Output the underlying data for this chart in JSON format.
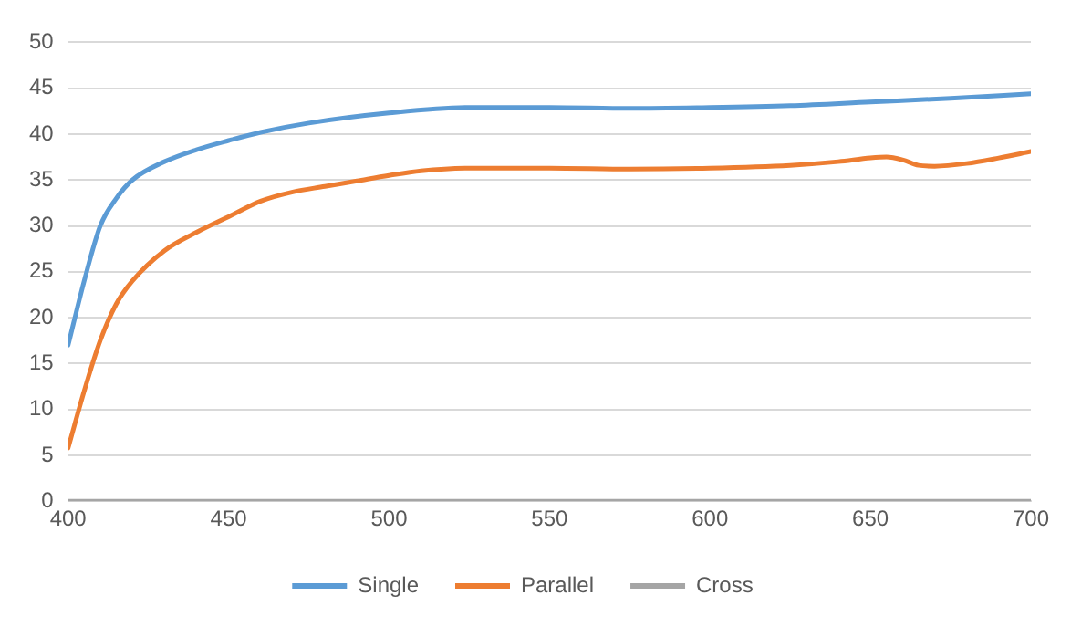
{
  "chart_data": {
    "type": "line",
    "xlim": [
      400,
      700
    ],
    "xticks": [
      400,
      450,
      500,
      550,
      600,
      650,
      700
    ],
    "ylim": [
      0,
      50
    ],
    "yticks": [
      0,
      5,
      10,
      15,
      20,
      25,
      30,
      35,
      40,
      45,
      50
    ],
    "grid": "y",
    "legend": "bottom",
    "marker": "none",
    "line_style": "solid",
    "series": [
      {
        "name": "Single",
        "color": "#5b9bd5",
        "x": [
          400,
          405,
          410,
          415,
          420,
          430,
          440,
          450,
          460,
          475,
          500,
          525,
          550,
          575,
          600,
          625,
          650,
          675,
          700
        ],
        "values": [
          17,
          24,
          30,
          33,
          35,
          37,
          38.3,
          39.3,
          40.2,
          41.2,
          42.3,
          42.9,
          42.9,
          42.8,
          42.9,
          43.1,
          43.5,
          43.9,
          44.4
        ]
      },
      {
        "name": "Parallel",
        "color": "#ed7d31",
        "x": [
          400,
          405,
          410,
          415,
          420,
          430,
          440,
          450,
          460,
          470,
          480,
          490,
          500,
          510,
          525,
          550,
          575,
          600,
          625,
          640,
          650,
          655,
          660,
          665,
          670,
          680,
          690,
          700
        ],
        "values": [
          5.8,
          12,
          17.5,
          21.5,
          24,
          27.3,
          29.3,
          31,
          32.7,
          33.7,
          34.3,
          34.9,
          35.5,
          36,
          36.3,
          36.3,
          36.2,
          36.3,
          36.6,
          37,
          37.4,
          37.5,
          37.2,
          36.6,
          36.5,
          36.8,
          37.4,
          38.1
        ]
      },
      {
        "name": "Cross",
        "color": "#a5a5a5",
        "x": [
          400,
          700
        ],
        "values": [
          0,
          0
        ]
      }
    ]
  }
}
